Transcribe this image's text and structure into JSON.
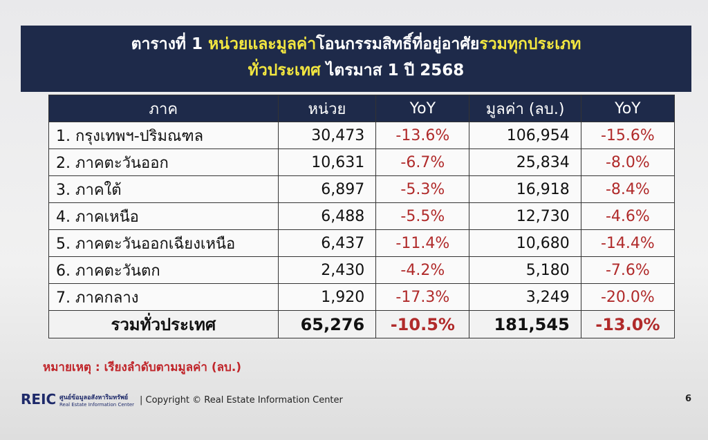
{
  "header": {
    "title_parts": [
      "ตารางที่ 1 ",
      "หน่วยและมูลค่า",
      "โอนกรรมสิทธิ์ที่อยู่อาศัย",
      "รวมทุกประเภท"
    ],
    "subtitle_parts": [
      "ทั่วประเทศ",
      " ไตรมาส 1 ปี 2568"
    ]
  },
  "table": {
    "columns": [
      "ภาค",
      "หน่วย",
      "YoY",
      "มูลค่า (ลบ.)",
      "YoY"
    ],
    "rows": [
      [
        "1. กรุงเทพฯ-ปริมณฑล",
        "30,473",
        "-13.6%",
        "106,954",
        "-15.6%"
      ],
      [
        "2. ภาคตะวันออก",
        "10,631",
        "-6.7%",
        "25,834",
        "-8.0%"
      ],
      [
        "3. ภาคใต้",
        "6,897",
        "-5.3%",
        "16,918",
        "-8.4%"
      ],
      [
        "4. ภาคเหนือ",
        "6,488",
        "-5.5%",
        "12,730",
        "-4.6%"
      ],
      [
        "5. ภาคตะวันออกเฉียงเหนือ",
        "6,437",
        "-11.4%",
        "10,680",
        "-14.4%"
      ],
      [
        "6. ภาคตะวันตก",
        "2,430",
        "-4.2%",
        "5,180",
        "-7.6%"
      ],
      [
        "7. ภาคกลาง",
        "1,920",
        "-17.3%",
        "3,249",
        "-20.0%"
      ]
    ],
    "total": [
      "รวมทั่วประเทศ",
      "65,276",
      "-10.5%",
      "181,545",
      "-13.0%"
    ]
  },
  "note": "หมายเหตุ : เรียงลำดับตามมูลค่า (ลบ.)",
  "footer": {
    "logo": "REIC",
    "org_thai": "ศูนย์ข้อมูลอสังหาริมทรัพย์",
    "org_en": "Real Estate Information Center",
    "copyright": "| Copyright © Real Estate Information Center",
    "page": "6"
  }
}
